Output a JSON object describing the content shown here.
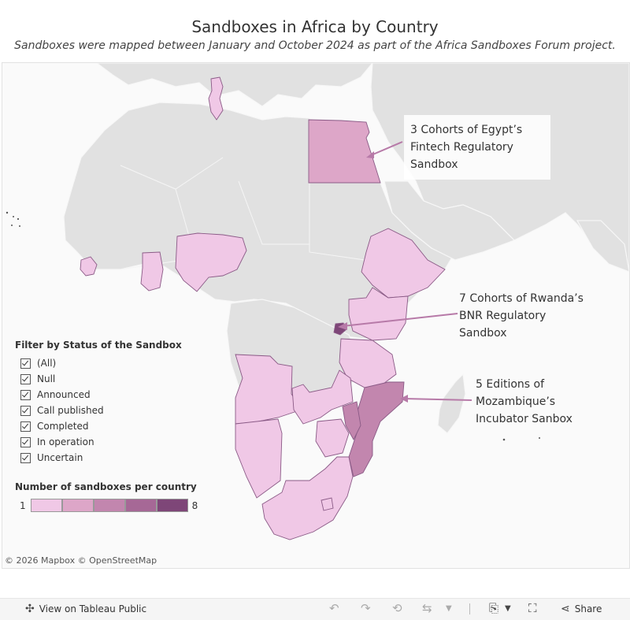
{
  "title": "Sandboxes in Africa by Country",
  "subtitle": "Sandboxes were mapped between January and October 2024 as part of the Africa Sandboxes Forum project.",
  "callouts": {
    "egypt": [
      "3 Cohorts of Egypt’s",
      "Fintech Regulatory",
      "Sandbox"
    ],
    "rwanda": [
      "7 Cohorts of Rwanda’s",
      "BNR Regulatory",
      "Sandbox"
    ],
    "mozambique": [
      "5 Editions of",
      "Mozambique’s",
      "Incubator Sanbox"
    ]
  },
  "filter": {
    "title": "Filter by Status of the Sandbox",
    "items": [
      "(All)",
      "Null",
      "Announced",
      "Call published",
      "Completed",
      "In operation",
      "Uncertain"
    ]
  },
  "legend": {
    "title": "Number of sandboxes per country",
    "min": "1",
    "max": "8",
    "colors": [
      "#f0c8e6",
      "#dda6c8",
      "#c286ae",
      "#a66896",
      "#7e4678"
    ]
  },
  "attribution": "© 2026 Mapbox  © OpenStreetMap",
  "toolbar": {
    "view_label": "View on Tableau Public",
    "share_label": "Share"
  },
  "colors": {
    "land": "#e1e1e1",
    "land_border": "#f7f7f7",
    "sea": "#fafafa",
    "highlight_border": "#8a5a86",
    "callout_line": "#b77aa8"
  }
}
